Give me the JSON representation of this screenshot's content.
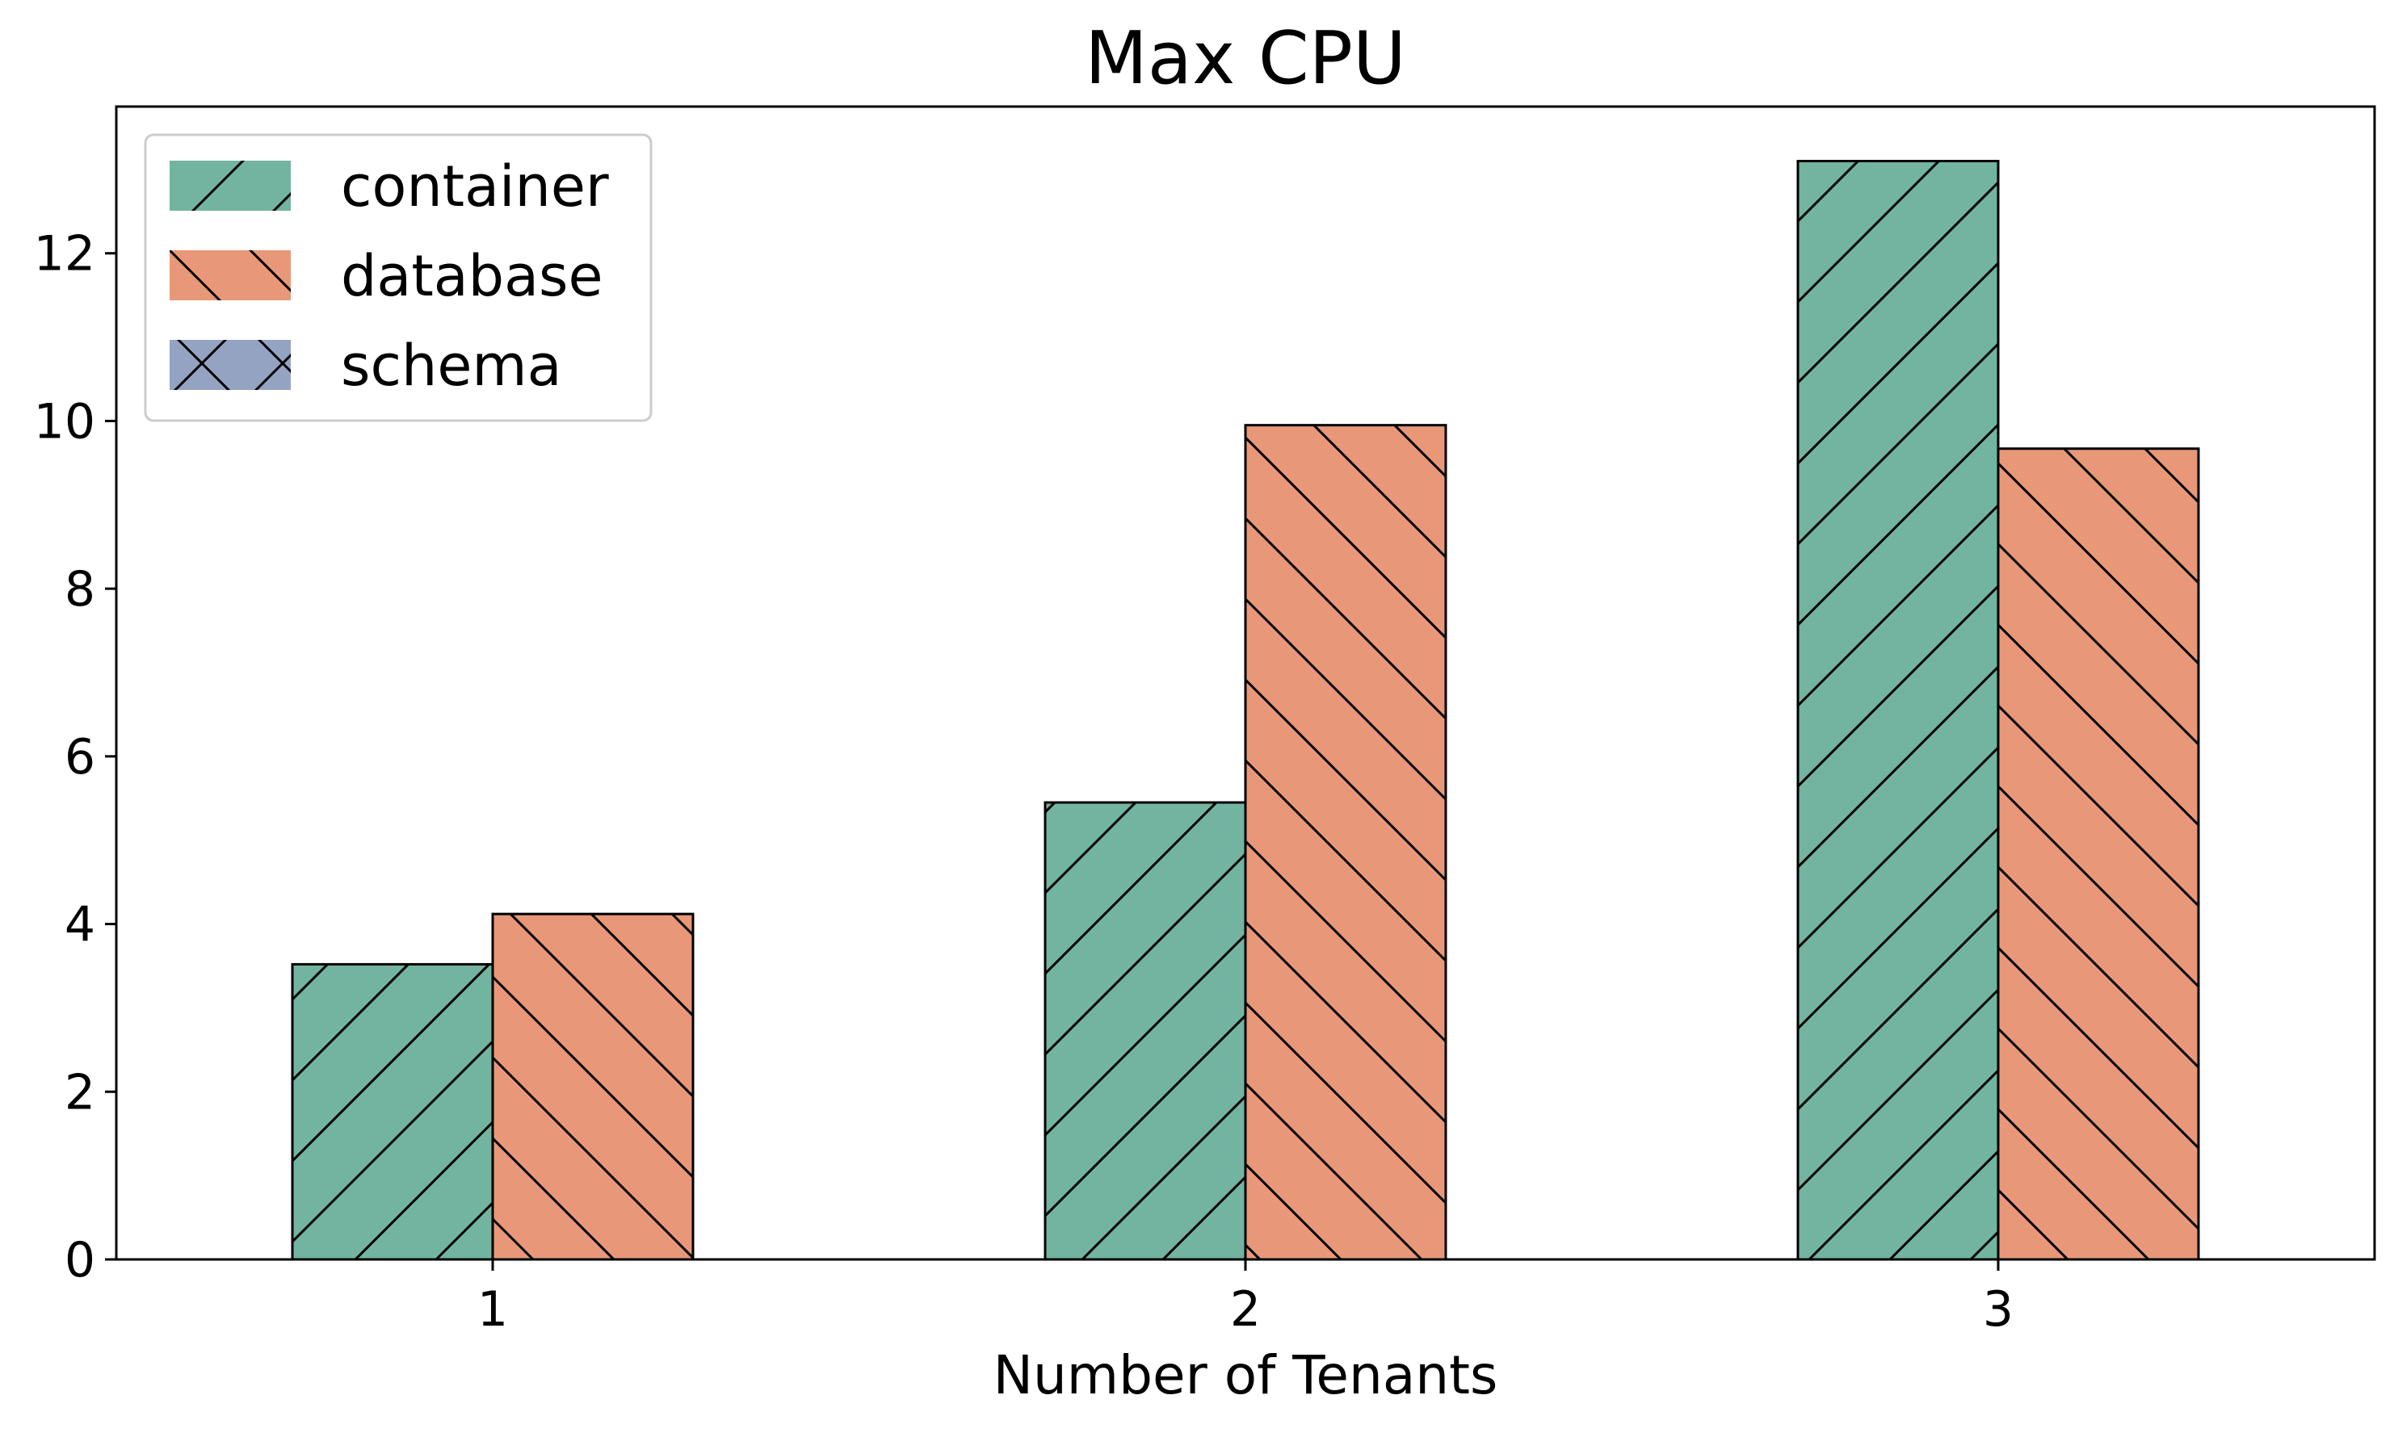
{
  "chart_data": {
    "type": "bar",
    "title": "Max CPU",
    "xlabel": "Number of Tenants",
    "ylabel": "",
    "categories": [
      "1",
      "2",
      "3"
    ],
    "ylim": [
      0,
      13.75
    ],
    "yticks": [
      0,
      2,
      4,
      6,
      8,
      10,
      12
    ],
    "grid": false,
    "legend_position": "top-left",
    "series": [
      {
        "name": "container",
        "values": [
          3.52,
          5.45,
          13.1
        ],
        "color": "#72b4a0",
        "hatch": "diagonal-forward"
      },
      {
        "name": "database",
        "values": [
          4.12,
          9.95,
          9.67
        ],
        "color": "#e89878",
        "hatch": "diagonal-backward"
      },
      {
        "name": "schema",
        "values": [
          null,
          null,
          null
        ],
        "color": "#95a3c3",
        "hatch": "cross"
      }
    ]
  }
}
